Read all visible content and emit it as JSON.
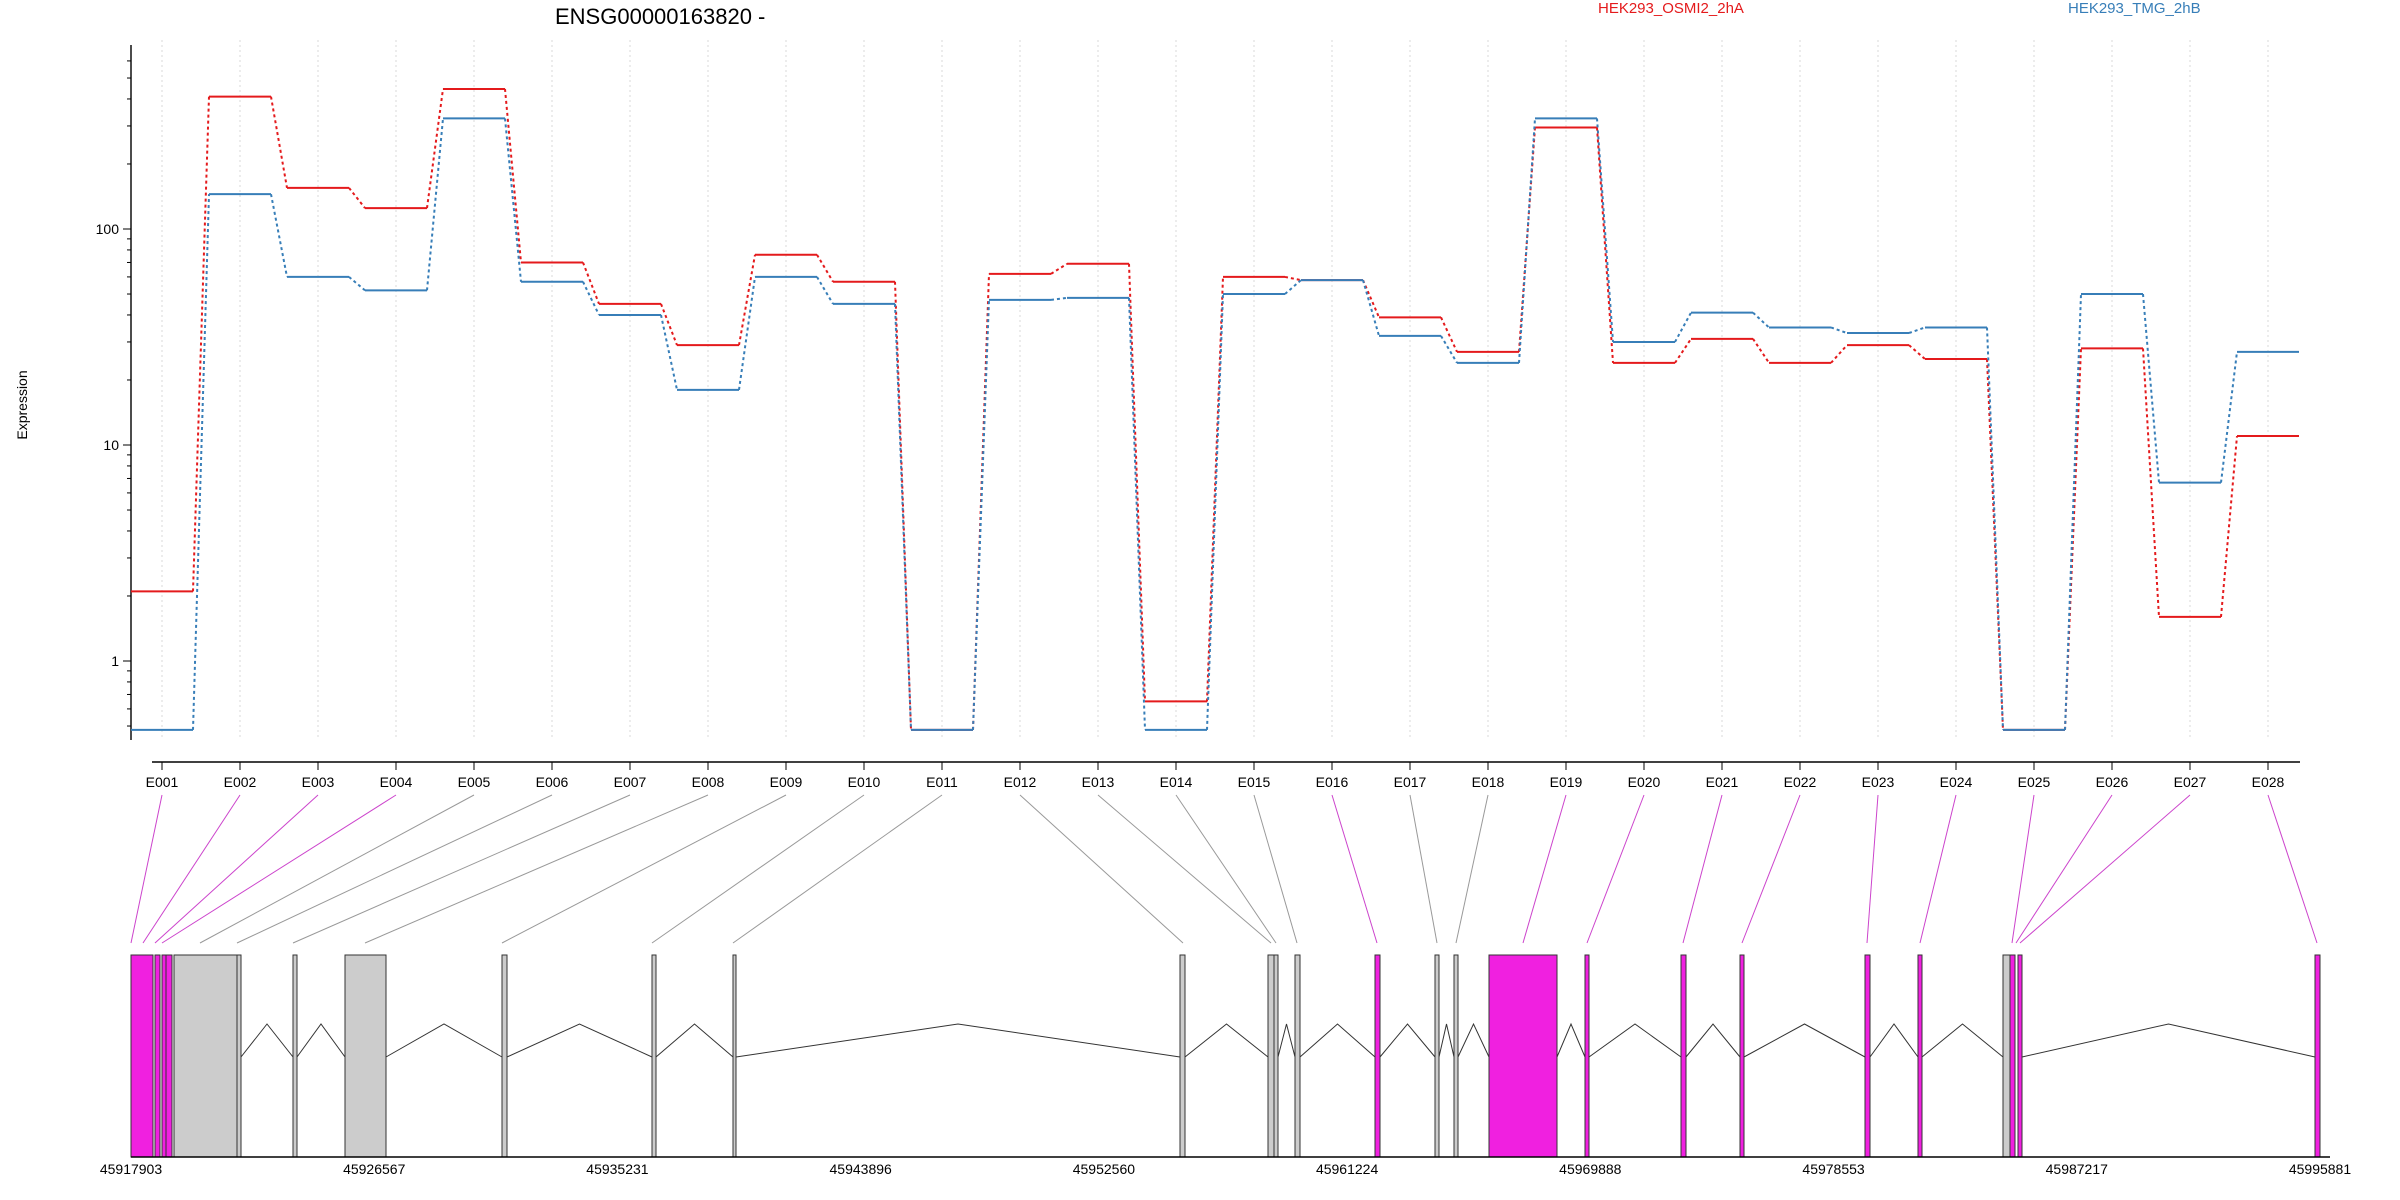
{
  "chart_data": {
    "type": "line",
    "title": "ENSG00000163820 -",
    "ylabel": "Expression",
    "yscale": "log",
    "ylim": [
      0.48,
      600
    ],
    "yticks": [
      1,
      10,
      100
    ],
    "ytick_labels": [
      "1",
      "10",
      "100"
    ],
    "categories": [
      "E001",
      "E002",
      "E003",
      "E004",
      "E005",
      "E006",
      "E007",
      "E008",
      "E009",
      "E010",
      "E011",
      "E012",
      "E013",
      "E014",
      "E015",
      "E016",
      "E017",
      "E018",
      "E019",
      "E020",
      "E021",
      "E022",
      "E023",
      "E024",
      "E025",
      "E026",
      "E027",
      "E028"
    ],
    "series": [
      {
        "name": "HEK293_OSMI2_2hA",
        "color": "#e41a1c",
        "values": [
          2.1,
          410,
          155,
          125,
          445,
          70,
          45,
          29,
          76,
          57,
          0.48,
          62,
          69,
          0.65,
          60,
          58,
          39,
          27,
          295,
          24,
          31,
          24,
          29,
          25,
          0.48,
          28,
          1.6,
          11
        ]
      },
      {
        "name": "HEK293_TMG_2hB",
        "color": "#377eb8",
        "values": [
          0.48,
          145,
          60,
          52,
          325,
          57,
          40,
          18,
          60,
          45,
          0.48,
          47,
          48,
          0.48,
          50,
          58,
          32,
          24,
          325,
          30,
          41,
          35,
          33,
          35,
          0.48,
          50,
          6.7,
          27
        ]
      }
    ],
    "gene_model": {
      "coordinate_labels": [
        "45917903",
        "45926567",
        "45935231",
        "45943896",
        "45952560",
        "45961224",
        "45969888",
        "45978553",
        "45987217",
        "45995881"
      ],
      "exon_color_significant": "#f020e0",
      "exon_color_other": "#cccccc",
      "significant_exons": [
        "E001",
        "E002",
        "E003",
        "E004",
        "E016",
        "E019",
        "E020",
        "E021",
        "E022",
        "E023",
        "E024",
        "E025",
        "E026",
        "E027",
        "E028"
      ]
    }
  }
}
